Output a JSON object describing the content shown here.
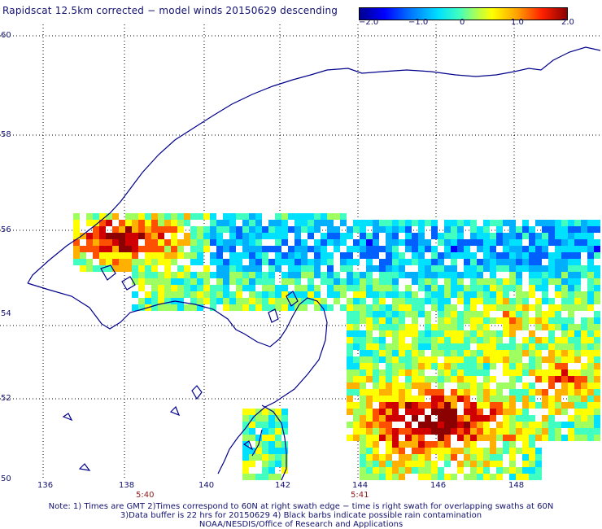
{
  "title": "Rapidscat 12.5km corrected − model winds 20150629 descending",
  "colorbar": {
    "ticks": [
      "−2.0",
      "−1.0",
      "0",
      "1.0",
      "2.0"
    ],
    "range": [
      -2.0,
      2.0
    ],
    "colors": [
      "#00008f",
      "#0000ff",
      "#00e0ff",
      "#ffff00",
      "#ff2000",
      "#8b0000"
    ]
  },
  "axes": {
    "lat_labels": [
      "60",
      "58",
      "56",
      "54",
      "52",
      "50"
    ],
    "lon_labels": [
      "136",
      "138",
      "140",
      "142",
      "144",
      "146",
      "148"
    ]
  },
  "times": [
    "5:40",
    "5:41"
  ],
  "notes": [
    "Note: 1) Times are GMT 2)Times correspond to 60N at right swath edge − time is right swath for overlapping swaths at 60N",
    "3)Data buffer is 22 hrs for 20150629 4) Black barbs indicate possible rain contamination",
    "NOAA/NESDIS/Office of Research and Applications"
  ]
}
